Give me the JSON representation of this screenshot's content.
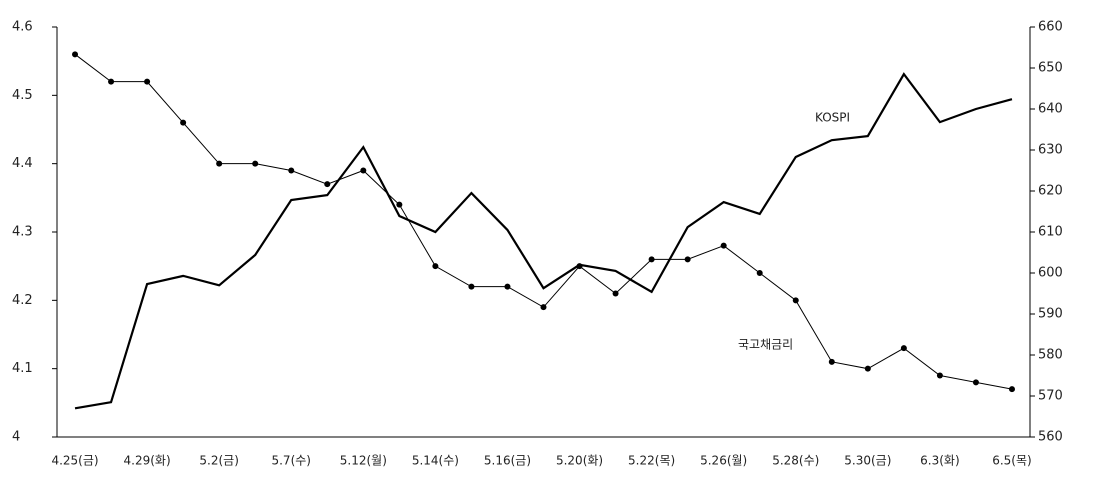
{
  "chart_data": {
    "type": "line",
    "categories": [
      "4.25(금)",
      null,
      "4.29(화)",
      null,
      "5.2(금)",
      null,
      "5.7(수)",
      null,
      "5.12(월)",
      null,
      "5.14(수)",
      null,
      "5.16(금)",
      null,
      "5.20(화)",
      null,
      "5.22(목)",
      null,
      "5.26(월)",
      null,
      "5.28(수)",
      null,
      "5.30(금)",
      null,
      "6.3(화)",
      null,
      "6.5(목)"
    ],
    "series": [
      {
        "name": "국고채금리",
        "color": "#000000",
        "markers": true,
        "values": [
          4.56,
          4.52,
          4.52,
          4.46,
          4.4,
          4.4,
          4.39,
          4.37,
          4.39,
          4.34,
          4.25,
          4.22,
          4.22,
          4.19,
          4.25,
          4.21,
          4.26,
          4.26,
          4.28,
          4.24,
          4.2,
          4.11,
          4.1,
          4.13,
          4.09,
          4.08,
          4.07
        ]
      },
      {
        "name": "KOSPI",
        "color": "#000000",
        "axis": "y2",
        "markers": false,
        "values": [
          567,
          568.5,
          597.3,
          599.3,
          597,
          604.4,
          617.8,
          619,
          630.7,
          613.9,
          610,
          619.5,
          610.5,
          596.3,
          602,
          600.5,
          595.4,
          611.2,
          617.3,
          614.4,
          628.3,
          632.4,
          633.4,
          648.5,
          636.8,
          640,
          642.4
        ]
      }
    ],
    "ylim": [
      4,
      4.6
    ],
    "yticks": [
      4,
      4.1,
      4.2,
      4.3,
      4.4,
      4.5,
      4.6
    ],
    "y2lim": [
      560,
      660
    ],
    "y2ticks": [
      560,
      570,
      580,
      590,
      600,
      610,
      620,
      630,
      640,
      650,
      660
    ],
    "grid": false
  }
}
